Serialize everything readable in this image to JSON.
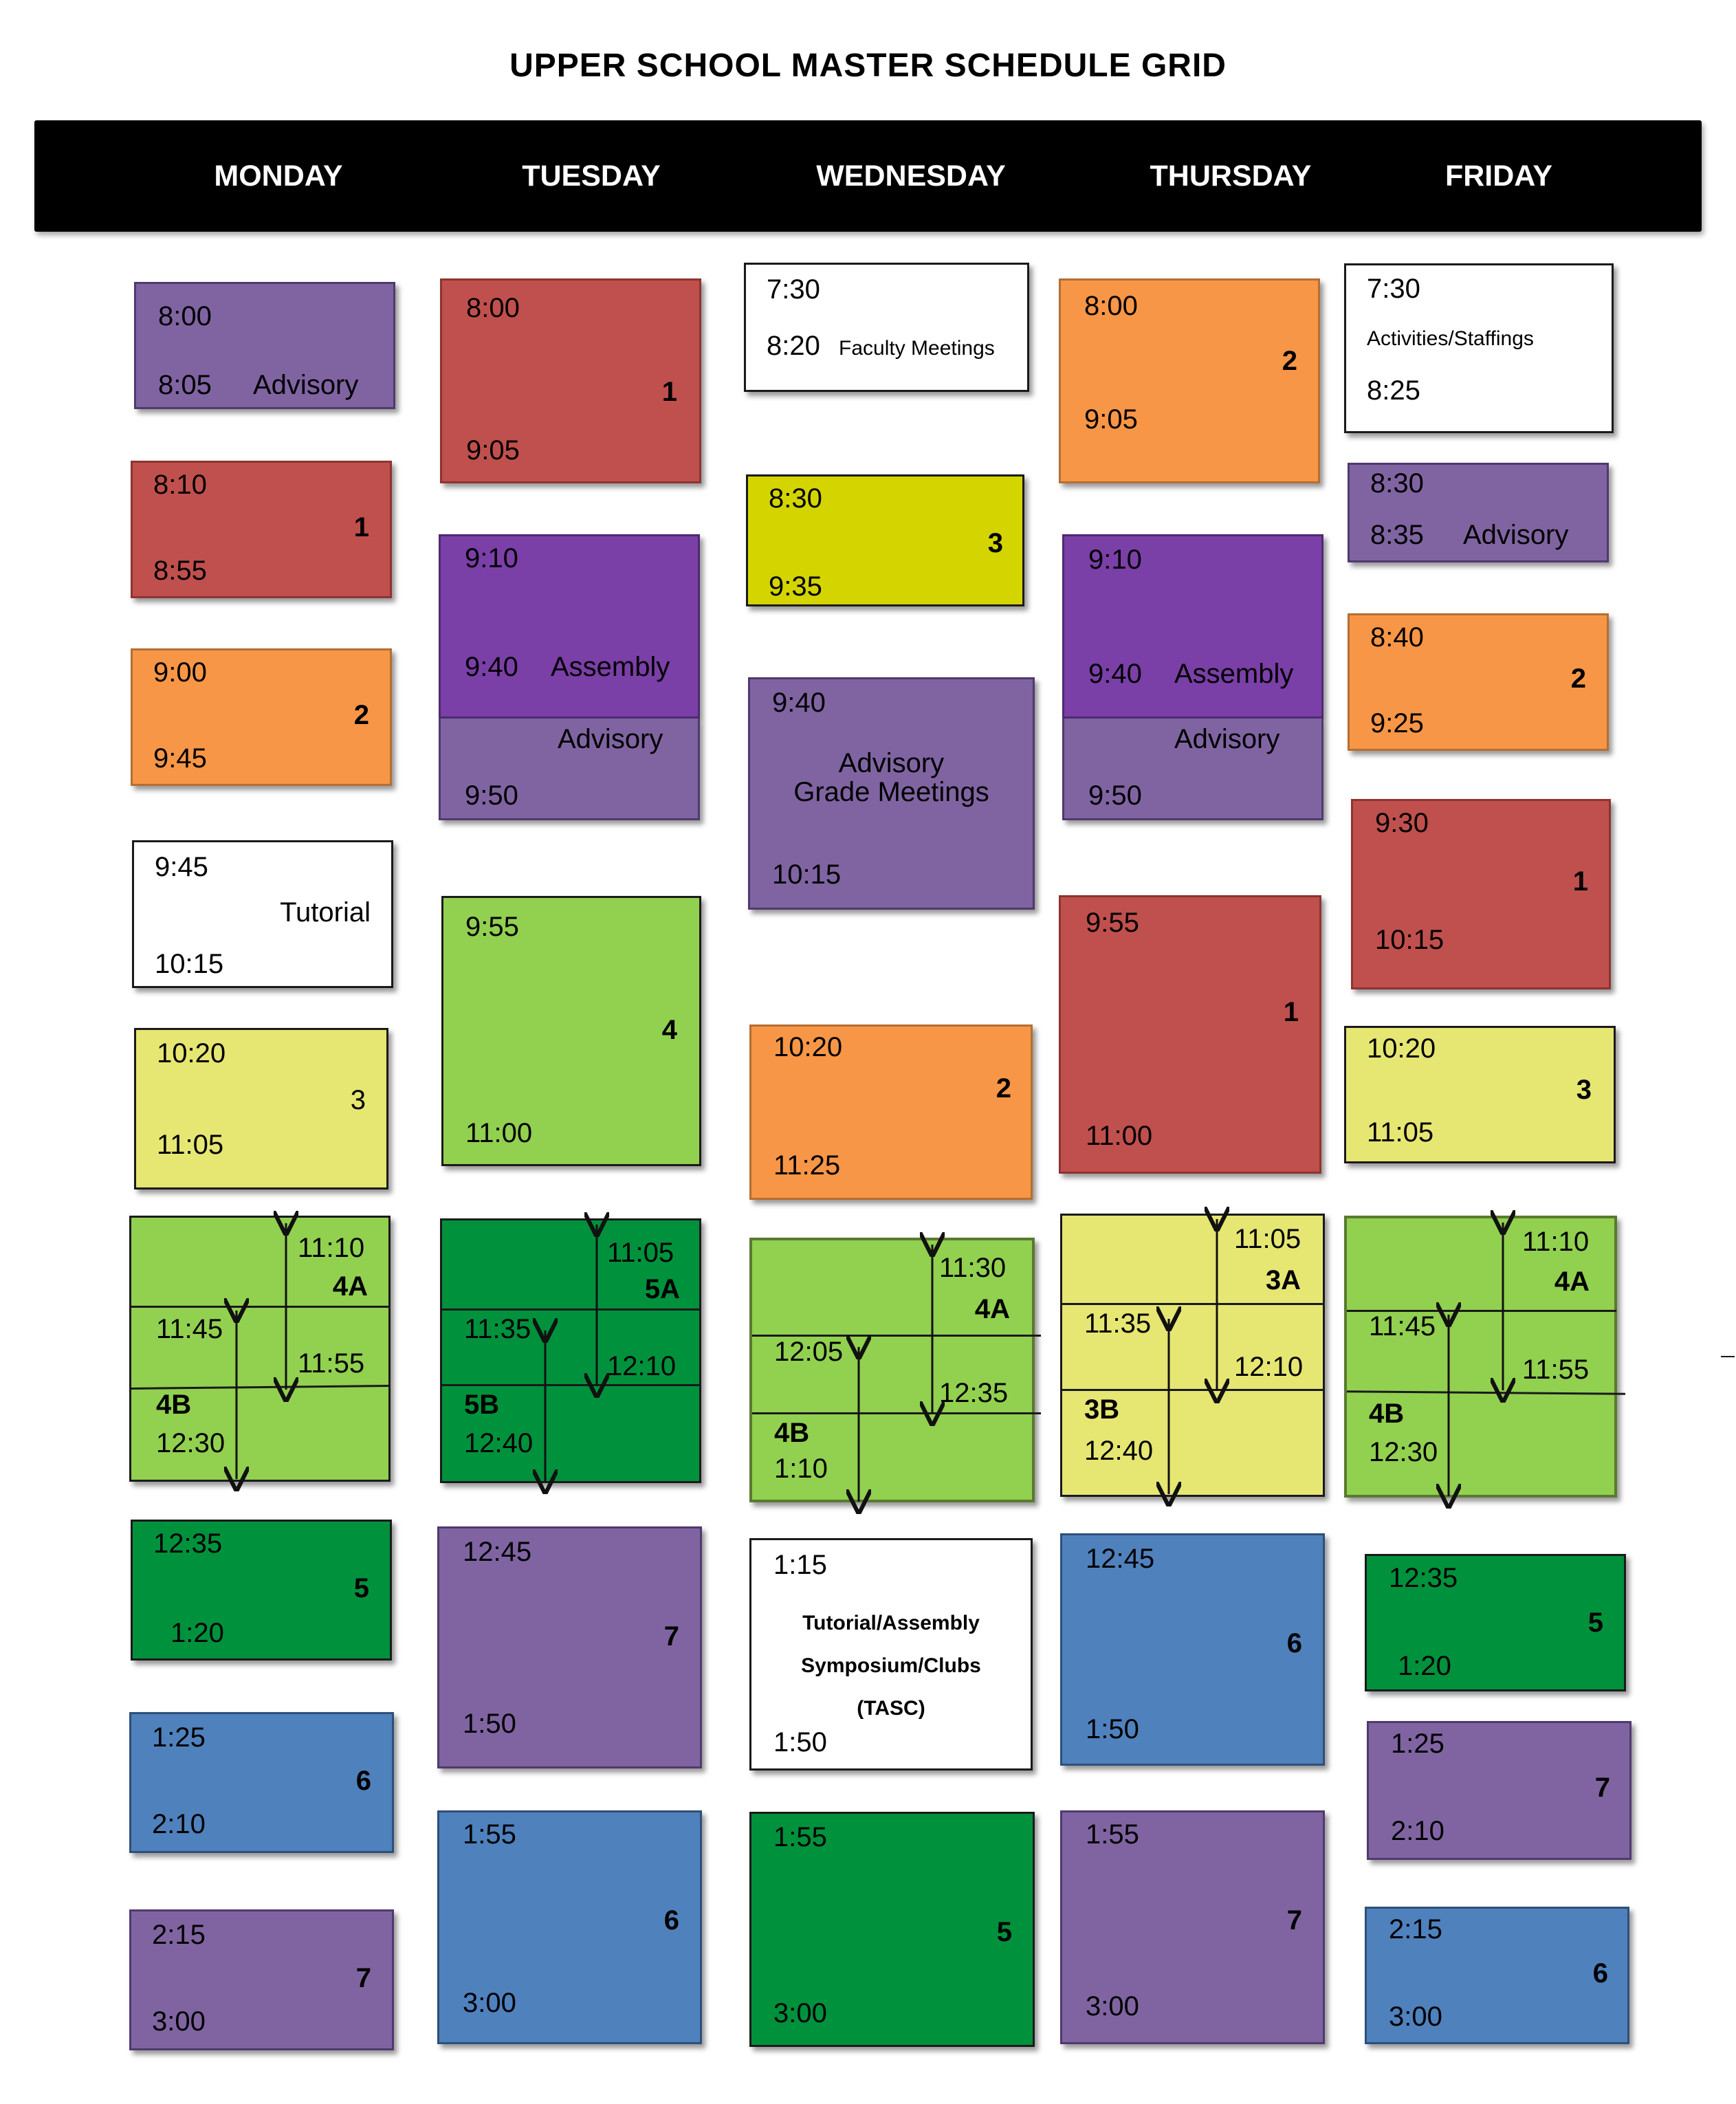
{
  "title": "UPPER SCHOOL MASTER SCHEDULE GRID",
  "days": [
    "MONDAY",
    "TUESDAY",
    "WEDNESDAY",
    "THURSDAY",
    "FRIDAY"
  ],
  "colors": {
    "red": "#c0504d",
    "orange": "#f79646",
    "purple": "#8064a2",
    "assembly_purple": "#7b3fa8",
    "yellow": "#e6e673",
    "bright_yellow": "#d4d400",
    "light_green": "#92d050",
    "dark_green": "#00913c",
    "blue": "#4f81bd",
    "white": "#ffffff",
    "header": "#000000"
  },
  "mon": {
    "advisory": {
      "start": "8:00",
      "end": "8:05",
      "label": "Advisory"
    },
    "p1": {
      "start": "8:10",
      "end": "8:55",
      "num": "1"
    },
    "p2": {
      "start": "9:00",
      "end": "9:45",
      "num": "2"
    },
    "tutorial": {
      "start": "9:45",
      "end": "10:15",
      "label": "Tutorial"
    },
    "p3": {
      "start": "10:20",
      "end": "11:05",
      "num": "3"
    },
    "split": {
      "a_start": "11:10",
      "a_label": "4A",
      "a_end": "11:55",
      "b_start": "11:45",
      "b_label": "4B",
      "b_end": "12:30"
    },
    "p5": {
      "start": "12:35",
      "end": "1:20",
      "num": "5"
    },
    "p6": {
      "start": "1:25",
      "end": "2:10",
      "num": "6"
    },
    "p7": {
      "start": "2:15",
      "end": "3:00",
      "num": "7"
    }
  },
  "tue": {
    "p1": {
      "start": "8:00",
      "end": "9:05",
      "num": "1"
    },
    "assembly": {
      "start": "9:10",
      "mid": "9:40",
      "label": "Assembly",
      "label2": "Advisory",
      "end": "9:50"
    },
    "p4": {
      "start": "9:55",
      "end": "11:00",
      "num": "4"
    },
    "split": {
      "a_start": "11:05",
      "a_label": "5A",
      "a_end": "12:10",
      "b_start": "11:35",
      "b_label": "5B",
      "b_end": "12:40"
    },
    "p7": {
      "start": "12:45",
      "end": "1:50",
      "num": "7"
    },
    "p6": {
      "start": "1:55",
      "end": "3:00",
      "num": "6"
    }
  },
  "wed": {
    "faculty": {
      "start": "7:30",
      "end": "8:20",
      "label": "Faculty Meetings"
    },
    "p3": {
      "start": "8:30",
      "end": "9:35",
      "num": "3"
    },
    "advisory": {
      "start": "9:40",
      "label": "Advisory",
      "label2": "Grade Meetings",
      "end": "10:15"
    },
    "p2": {
      "start": "10:20",
      "end": "11:25",
      "num": "2"
    },
    "split": {
      "a_start": "11:30",
      "a_label": "4A",
      "a_end": "12:35",
      "b_start": "12:05",
      "b_label": "4B",
      "b_end": "1:10"
    },
    "tasc": {
      "start": "1:15",
      "line1": "Tutorial/Assembly",
      "line2": "Symposium/Clubs",
      "line3": "(TASC)",
      "end": "1:50"
    },
    "p5": {
      "start": "1:55",
      "end": "3:00",
      "num": "5"
    }
  },
  "thu": {
    "p2": {
      "start": "8:00",
      "end": "9:05",
      "num": "2"
    },
    "assembly": {
      "start": "9:10",
      "mid": "9:40",
      "label": "Assembly",
      "label2": "Advisory",
      "end": "9:50"
    },
    "p1": {
      "start": "9:55",
      "end": "11:00",
      "num": "1"
    },
    "split": {
      "a_start": "11:05",
      "a_label": "3A",
      "a_end": "12:10",
      "b_start": "11:35",
      "b_label": "3B",
      "b_end": "12:40"
    },
    "p6": {
      "start": "12:45",
      "end": "1:50",
      "num": "6"
    },
    "p7": {
      "start": "1:55",
      "end": "3:00",
      "num": "7"
    }
  },
  "fri": {
    "activities": {
      "start": "7:30",
      "label": "Activities/Staffings",
      "end": "8:25"
    },
    "advisory": {
      "start": "8:30",
      "end": "8:35",
      "label": "Advisory"
    },
    "p2": {
      "start": "8:40",
      "end": "9:25",
      "num": "2"
    },
    "p1": {
      "start": "9:30",
      "end": "10:15",
      "num": "1"
    },
    "p3": {
      "start": "10:20",
      "end": "11:05",
      "num": "3"
    },
    "split": {
      "a_start": "11:10",
      "a_label": "4A",
      "a_end": "11:55",
      "b_start": "11:45",
      "b_label": "4B",
      "b_end": "12:30"
    },
    "p5": {
      "start": "12:35",
      "end": "1:20",
      "num": "5"
    },
    "p7": {
      "start": "1:25",
      "end": "2:10",
      "num": "7"
    },
    "p6": {
      "start": "2:15",
      "end": "3:00",
      "num": "6"
    }
  }
}
